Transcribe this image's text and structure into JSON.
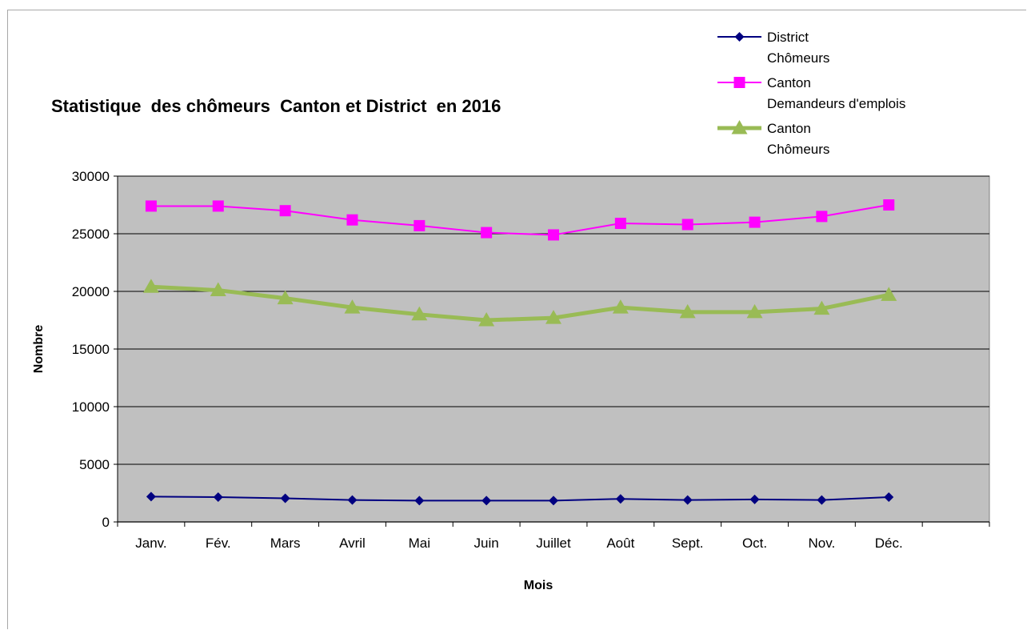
{
  "chart_data": {
    "type": "line",
    "title": "Statistique  des chômeurs  Canton et District  en 2016",
    "xlabel": "Mois",
    "ylabel": "Nombre",
    "ylim": [
      0,
      30000
    ],
    "yticks": [
      0,
      5000,
      10000,
      15000,
      20000,
      25000,
      30000
    ],
    "grid": true,
    "legend_position": "top-right",
    "plot_background": "#c0c0c0",
    "categories": [
      "Janv.",
      "Fév.",
      "Mars",
      "Avril",
      "Mai",
      "Juin",
      "Juillet",
      "Août",
      "Sept.",
      "Oct.",
      "Nov.",
      "Déc."
    ],
    "series": [
      {
        "name_lines": [
          "District",
          "Chômeurs"
        ],
        "color": "#000080",
        "marker": "diamond",
        "values": [
          2200,
          2150,
          2050,
          1900,
          1850,
          1850,
          1850,
          2000,
          1900,
          1950,
          1900,
          2150
        ]
      },
      {
        "name_lines": [
          "Canton",
          "Demandeurs d'emplois"
        ],
        "color": "#ff00ff",
        "marker": "square",
        "values": [
          27400,
          27400,
          27000,
          26200,
          25700,
          25100,
          24900,
          25900,
          25800,
          26000,
          26500,
          27500
        ]
      },
      {
        "name_lines": [
          "Canton",
          "Chômeurs"
        ],
        "color": "#99bb55",
        "marker": "triangle",
        "values": [
          20400,
          20100,
          19400,
          18600,
          18000,
          17500,
          17700,
          18600,
          18200,
          18200,
          18500,
          19700
        ]
      }
    ]
  }
}
